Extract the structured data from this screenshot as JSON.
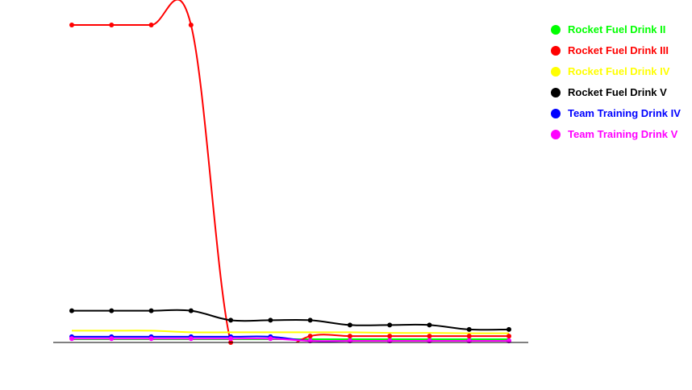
{
  "chart_data": {
    "type": "line",
    "title": "",
    "xlabel": "",
    "ylabel": "",
    "grid": false,
    "legend_position": "top-right",
    "ylim": [
      0,
      100
    ],
    "x": [
      1,
      2,
      3,
      4,
      5,
      6,
      7,
      8,
      9,
      10,
      11,
      12
    ],
    "series": [
      {
        "name": "Rocket Fuel Drink II",
        "color": "#00ff00",
        "markers": false,
        "values": [
          1.0,
          1.0,
          1.0,
          1.0,
          1.0,
          1.0,
          1.0,
          1.0,
          1.0,
          1.0,
          1.0,
          1.0
        ]
      },
      {
        "name": "Rocket Fuel Drink III",
        "color": "#ff0000",
        "markers": true,
        "values": [
          100,
          100,
          100,
          100,
          0,
          -4,
          2.0,
          2.0,
          2.0,
          2.0,
          2.0,
          2.0
        ]
      },
      {
        "name": "Rocket Fuel Drink IV",
        "color": "#ffff00",
        "markers": false,
        "values": [
          3.7,
          3.7,
          3.7,
          3.2,
          3.2,
          3.2,
          3.2,
          3.2,
          3.0,
          3.0,
          2.9,
          2.9
        ]
      },
      {
        "name": "Rocket Fuel Drink V",
        "color": "#000000",
        "markers": true,
        "values": [
          10.0,
          10.0,
          10.0,
          10.0,
          7.0,
          7.0,
          7.0,
          5.5,
          5.5,
          5.5,
          4.1,
          4.1
        ]
      },
      {
        "name": "Team Training Drink IV",
        "color": "#0000ff",
        "markers": true,
        "values": [
          1.8,
          1.8,
          1.8,
          1.8,
          1.8,
          1.8,
          0.5,
          0.5,
          0.5,
          0.5,
          0.5,
          0.5
        ]
      },
      {
        "name": "Team Training Drink V",
        "color": "#ff00ff",
        "markers": true,
        "values": [
          1.2,
          1.2,
          1.2,
          1.2,
          1.2,
          1.2,
          0.5,
          0.5,
          0.5,
          0.5,
          0.5,
          0.5
        ]
      }
    ]
  }
}
